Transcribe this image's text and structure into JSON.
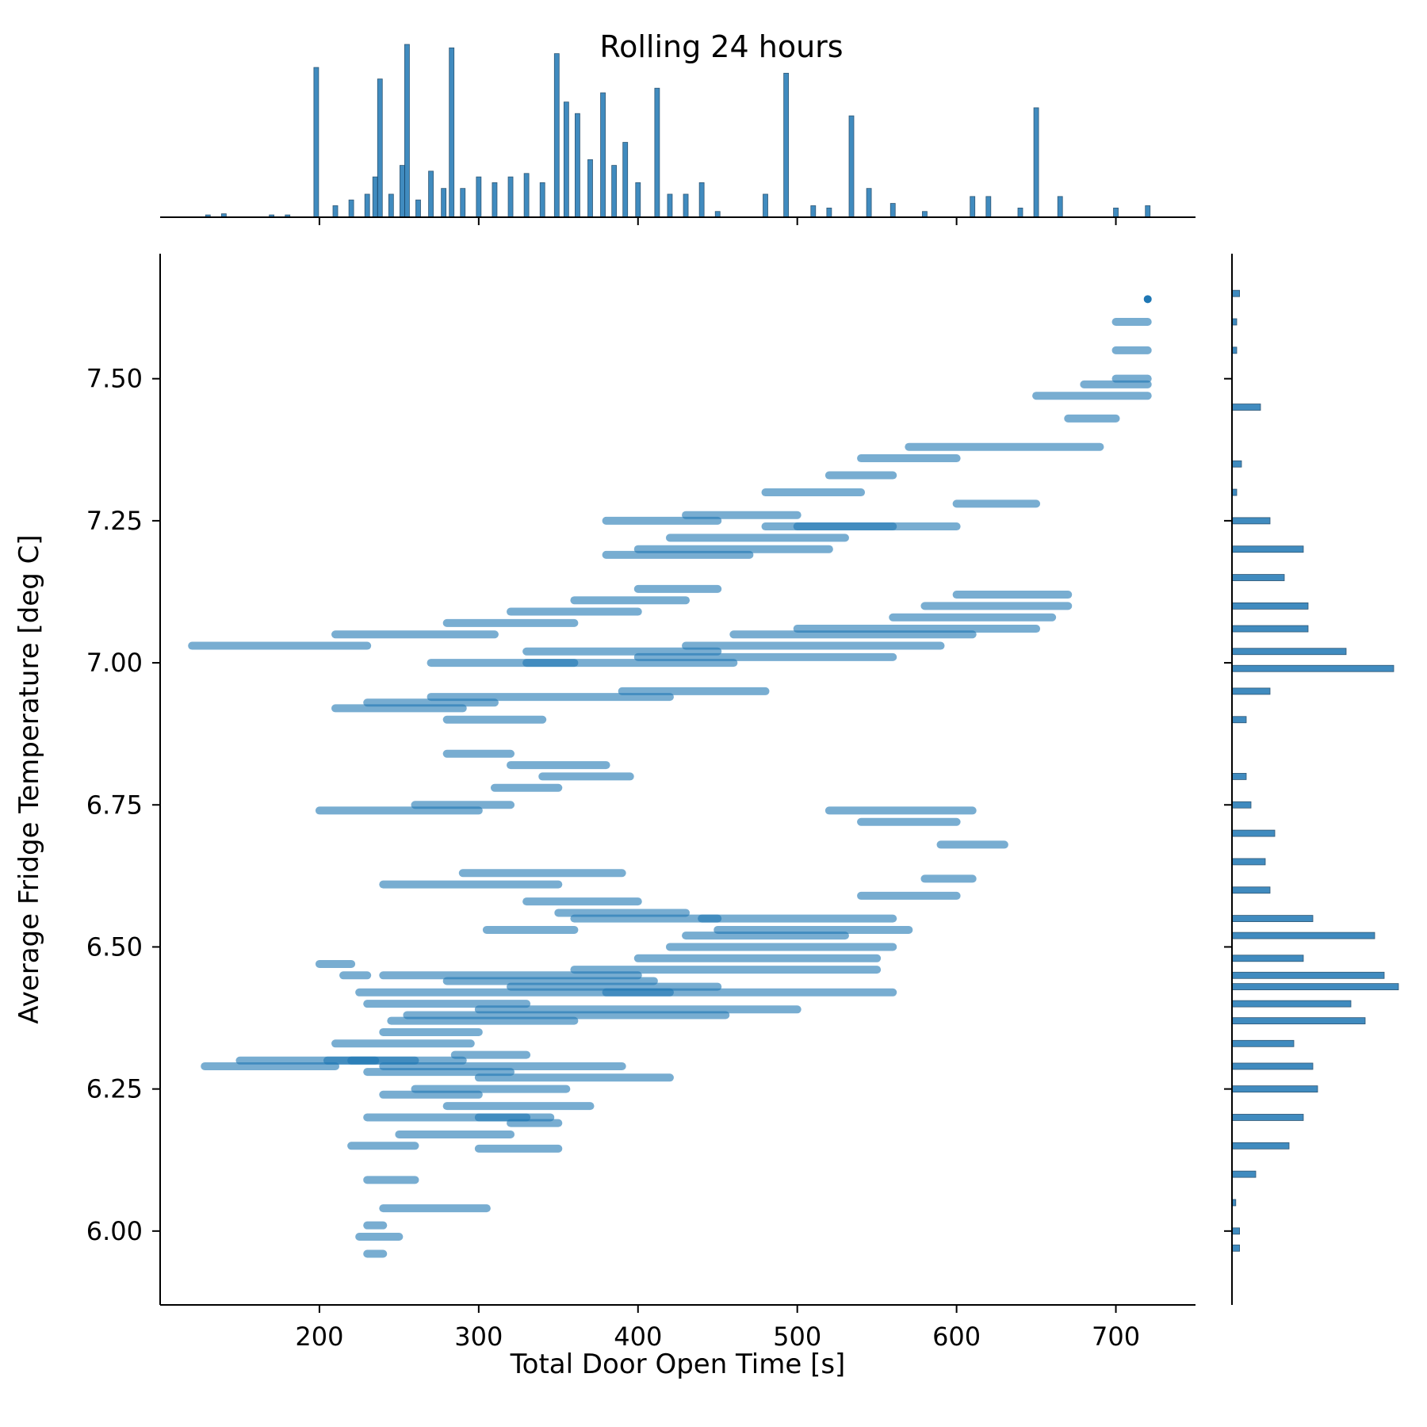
{
  "chart_data": {
    "type": "scatter",
    "subtype": "jointplot",
    "title": "Rolling 24 hours",
    "xlabel": "Total Door Open Time [s]",
    "ylabel": "Average Fridge Temperature [deg C]",
    "xlim": [
      100,
      750
    ],
    "ylim": [
      5.87,
      7.72
    ],
    "xticks": [
      200,
      300,
      400,
      500,
      600,
      700
    ],
    "xtick_labels": [
      "200",
      "300",
      "400",
      "500",
      "600",
      "700"
    ],
    "yticks": [
      6.0,
      6.25,
      6.5,
      6.75,
      7.0,
      7.25,
      7.5
    ],
    "ytick_labels": [
      "6.00",
      "6.25",
      "6.50",
      "6.75",
      "7.00",
      "7.25",
      "7.50"
    ],
    "grid": false,
    "colors": {
      "point": "#1f77b4",
      "bar": "#1f77b4",
      "bar_edge": "#0d3b5e"
    },
    "scatter_segments": [
      {
        "x": [
          128,
          210
        ],
        "y": 6.29
      },
      {
        "x": [
          150,
          235
        ],
        "y": 6.3
      },
      {
        "x": [
          205,
          260
        ],
        "y": 6.3
      },
      {
        "x": [
          210,
          295
        ],
        "y": 6.33
      },
      {
        "x": [
          240,
          300
        ],
        "y": 6.35
      },
      {
        "x": [
          220,
          290
        ],
        "y": 6.3
      },
      {
        "x": [
          230,
          320
        ],
        "y": 6.28
      },
      {
        "x": [
          240,
          390
        ],
        "y": 6.29
      },
      {
        "x": [
          285,
          330
        ],
        "y": 6.31
      },
      {
        "x": [
          300,
          420
        ],
        "y": 6.27
      },
      {
        "x": [
          260,
          355
        ],
        "y": 6.25
      },
      {
        "x": [
          280,
          370
        ],
        "y": 6.22
      },
      {
        "x": [
          240,
          300
        ],
        "y": 6.24
      },
      {
        "x": [
          230,
          330
        ],
        "y": 6.2
      },
      {
        "x": [
          300,
          345
        ],
        "y": 6.2
      },
      {
        "x": [
          320,
          350
        ],
        "y": 6.19
      },
      {
        "x": [
          220,
          260
        ],
        "y": 6.15
      },
      {
        "x": [
          250,
          320
        ],
        "y": 6.17
      },
      {
        "x": [
          300,
          350
        ],
        "y": 6.145
      },
      {
        "x": [
          230,
          260
        ],
        "y": 6.09
      },
      {
        "x": [
          240,
          305
        ],
        "y": 6.04
      },
      {
        "x": [
          225,
          250
        ],
        "y": 5.99
      },
      {
        "x": [
          230,
          240
        ],
        "y": 5.96
      },
      {
        "x": [
          230,
          240
        ],
        "y": 6.01
      },
      {
        "x": [
          245,
          360
        ],
        "y": 6.37
      },
      {
        "x": [
          255,
          455
        ],
        "y": 6.38
      },
      {
        "x": [
          300,
          500
        ],
        "y": 6.39
      },
      {
        "x": [
          380,
          560
        ],
        "y": 6.42
      },
      {
        "x": [
          230,
          330
        ],
        "y": 6.4
      },
      {
        "x": [
          225,
          420
        ],
        "y": 6.42
      },
      {
        "x": [
          280,
          410
        ],
        "y": 6.44
      },
      {
        "x": [
          240,
          400
        ],
        "y": 6.45
      },
      {
        "x": [
          320,
          450
        ],
        "y": 6.43
      },
      {
        "x": [
          360,
          550
        ],
        "y": 6.46
      },
      {
        "x": [
          400,
          550
        ],
        "y": 6.48
      },
      {
        "x": [
          420,
          560
        ],
        "y": 6.5
      },
      {
        "x": [
          450,
          570
        ],
        "y": 6.53
      },
      {
        "x": [
          430,
          530
        ],
        "y": 6.52
      },
      {
        "x": [
          440,
          560
        ],
        "y": 6.55
      },
      {
        "x": [
          540,
          600
        ],
        "y": 6.59
      },
      {
        "x": [
          290,
          390
        ],
        "y": 6.63
      },
      {
        "x": [
          240,
          350
        ],
        "y": 6.61
      },
      {
        "x": [
          330,
          400
        ],
        "y": 6.58
      },
      {
        "x": [
          350,
          430
        ],
        "y": 6.56
      },
      {
        "x": [
          360,
          450
        ],
        "y": 6.55
      },
      {
        "x": [
          305,
          360
        ],
        "y": 6.53
      },
      {
        "x": [
          200,
          220
        ],
        "y": 6.47
      },
      {
        "x": [
          215,
          230
        ],
        "y": 6.45
      },
      {
        "x": [
          200,
          300
        ],
        "y": 6.74
      },
      {
        "x": [
          260,
          320
        ],
        "y": 6.75
      },
      {
        "x": [
          310,
          350
        ],
        "y": 6.78
      },
      {
        "x": [
          340,
          395
        ],
        "y": 6.8
      },
      {
        "x": [
          320,
          380
        ],
        "y": 6.82
      },
      {
        "x": [
          280,
          320
        ],
        "y": 6.84
      },
      {
        "x": [
          210,
          290
        ],
        "y": 6.92
      },
      {
        "x": [
          270,
          420
        ],
        "y": 6.94
      },
      {
        "x": [
          390,
          480
        ],
        "y": 6.95
      },
      {
        "x": [
          230,
          310
        ],
        "y": 6.93
      },
      {
        "x": [
          280,
          340
        ],
        "y": 6.9
      },
      {
        "x": [
          270,
          360
        ],
        "y": 7.0
      },
      {
        "x": [
          330,
          460
        ],
        "y": 7.0
      },
      {
        "x": [
          400,
          560
        ],
        "y": 7.01
      },
      {
        "x": [
          430,
          590
        ],
        "y": 7.03
      },
      {
        "x": [
          460,
          610
        ],
        "y": 7.05
      },
      {
        "x": [
          500,
          650
        ],
        "y": 7.06
      },
      {
        "x": [
          560,
          660
        ],
        "y": 7.08
      },
      {
        "x": [
          580,
          670
        ],
        "y": 7.1
      },
      {
        "x": [
          600,
          670
        ],
        "y": 7.12
      },
      {
        "x": [
          330,
          450
        ],
        "y": 7.02
      },
      {
        "x": [
          120,
          230
        ],
        "y": 7.03
      },
      {
        "x": [
          210,
          310
        ],
        "y": 7.05
      },
      {
        "x": [
          280,
          360
        ],
        "y": 7.07
      },
      {
        "x": [
          320,
          400
        ],
        "y": 7.09
      },
      {
        "x": [
          360,
          430
        ],
        "y": 7.11
      },
      {
        "x": [
          400,
          450
        ],
        "y": 7.13
      },
      {
        "x": [
          380,
          470
        ],
        "y": 7.19
      },
      {
        "x": [
          400,
          520
        ],
        "y": 7.2
      },
      {
        "x": [
          420,
          530
        ],
        "y": 7.22
      },
      {
        "x": [
          380,
          450
        ],
        "y": 7.25
      },
      {
        "x": [
          430,
          500
        ],
        "y": 7.26
      },
      {
        "x": [
          480,
          560
        ],
        "y": 7.24
      },
      {
        "x": [
          500,
          600
        ],
        "y": 7.24
      },
      {
        "x": [
          600,
          650
        ],
        "y": 7.28
      },
      {
        "x": [
          480,
          540
        ],
        "y": 7.3
      },
      {
        "x": [
          520,
          560
        ],
        "y": 7.33
      },
      {
        "x": [
          540,
          600
        ],
        "y": 7.36
      },
      {
        "x": [
          570,
          690
        ],
        "y": 7.38
      },
      {
        "x": [
          670,
          700
        ],
        "y": 7.43
      },
      {
        "x": [
          650,
          720
        ],
        "y": 7.47
      },
      {
        "x": [
          680,
          720
        ],
        "y": 7.49
      },
      {
        "x": [
          700,
          720
        ],
        "y": 7.5
      },
      {
        "x": [
          700,
          720
        ],
        "y": 7.55
      },
      {
        "x": [
          700,
          720
        ],
        "y": 7.6
      },
      {
        "x": [
          520,
          610
        ],
        "y": 6.74
      },
      {
        "x": [
          540,
          600
        ],
        "y": 6.72
      },
      {
        "x": [
          590,
          630
        ],
        "y": 6.68
      },
      {
        "x": [
          580,
          610
        ],
        "y": 6.62
      }
    ],
    "scatter_points": [
      {
        "x": 720,
        "y": 7.64
      }
    ],
    "x_marginal_histogram": [
      {
        "x": 130,
        "h": 2
      },
      {
        "x": 140,
        "h": 3
      },
      {
        "x": 170,
        "h": 2
      },
      {
        "x": 180,
        "h": 2
      },
      {
        "x": 198,
        "h": 130
      },
      {
        "x": 210,
        "h": 10
      },
      {
        "x": 220,
        "h": 15
      },
      {
        "x": 230,
        "h": 20
      },
      {
        "x": 235,
        "h": 35
      },
      {
        "x": 238,
        "h": 120
      },
      {
        "x": 245,
        "h": 20
      },
      {
        "x": 252,
        "h": 45
      },
      {
        "x": 255,
        "h": 150
      },
      {
        "x": 262,
        "h": 15
      },
      {
        "x": 270,
        "h": 40
      },
      {
        "x": 278,
        "h": 25
      },
      {
        "x": 283,
        "h": 147
      },
      {
        "x": 290,
        "h": 25
      },
      {
        "x": 300,
        "h": 35
      },
      {
        "x": 310,
        "h": 30
      },
      {
        "x": 320,
        "h": 35
      },
      {
        "x": 330,
        "h": 38
      },
      {
        "x": 340,
        "h": 30
      },
      {
        "x": 349,
        "h": 142
      },
      {
        "x": 355,
        "h": 100
      },
      {
        "x": 362,
        "h": 90
      },
      {
        "x": 370,
        "h": 50
      },
      {
        "x": 378,
        "h": 108
      },
      {
        "x": 385,
        "h": 45
      },
      {
        "x": 392,
        "h": 65
      },
      {
        "x": 400,
        "h": 30
      },
      {
        "x": 412,
        "h": 112
      },
      {
        "x": 420,
        "h": 20
      },
      {
        "x": 430,
        "h": 20
      },
      {
        "x": 440,
        "h": 30
      },
      {
        "x": 450,
        "h": 5
      },
      {
        "x": 480,
        "h": 20
      },
      {
        "x": 493,
        "h": 125
      },
      {
        "x": 510,
        "h": 10
      },
      {
        "x": 520,
        "h": 8
      },
      {
        "x": 534,
        "h": 88
      },
      {
        "x": 545,
        "h": 25
      },
      {
        "x": 560,
        "h": 12
      },
      {
        "x": 580,
        "h": 5
      },
      {
        "x": 610,
        "h": 18
      },
      {
        "x": 620,
        "h": 18
      },
      {
        "x": 640,
        "h": 8
      },
      {
        "x": 650,
        "h": 95
      },
      {
        "x": 665,
        "h": 18
      },
      {
        "x": 700,
        "h": 8
      },
      {
        "x": 720,
        "h": 10
      }
    ],
    "y_marginal_histogram": [
      {
        "y": 5.97,
        "w": 8
      },
      {
        "y": 6.0,
        "w": 8
      },
      {
        "y": 6.05,
        "w": 4
      },
      {
        "y": 6.1,
        "w": 25
      },
      {
        "y": 6.15,
        "w": 60
      },
      {
        "y": 6.2,
        "w": 75
      },
      {
        "y": 6.25,
        "w": 90
      },
      {
        "y": 6.29,
        "w": 85
      },
      {
        "y": 6.33,
        "w": 65
      },
      {
        "y": 6.37,
        "w": 140
      },
      {
        "y": 6.4,
        "w": 125
      },
      {
        "y": 6.43,
        "w": 175
      },
      {
        "y": 6.45,
        "w": 160
      },
      {
        "y": 6.48,
        "w": 75
      },
      {
        "y": 6.52,
        "w": 150
      },
      {
        "y": 6.55,
        "w": 85
      },
      {
        "y": 6.6,
        "w": 40
      },
      {
        "y": 6.65,
        "w": 35
      },
      {
        "y": 6.7,
        "w": 45
      },
      {
        "y": 6.75,
        "w": 20
      },
      {
        "y": 6.8,
        "w": 15
      },
      {
        "y": 6.9,
        "w": 15
      },
      {
        "y": 6.95,
        "w": 40
      },
      {
        "y": 6.99,
        "w": 170
      },
      {
        "y": 7.02,
        "w": 120
      },
      {
        "y": 7.06,
        "w": 80
      },
      {
        "y": 7.1,
        "w": 80
      },
      {
        "y": 7.15,
        "w": 55
      },
      {
        "y": 7.2,
        "w": 75
      },
      {
        "y": 7.25,
        "w": 40
      },
      {
        "y": 7.3,
        "w": 5
      },
      {
        "y": 7.35,
        "w": 10
      },
      {
        "y": 7.45,
        "w": 30
      },
      {
        "y": 7.55,
        "w": 5
      },
      {
        "y": 7.6,
        "w": 5
      },
      {
        "y": 7.65,
        "w": 8
      }
    ]
  }
}
